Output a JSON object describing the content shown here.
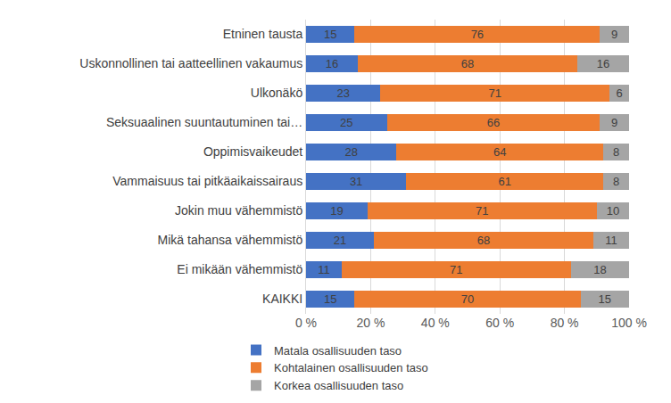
{
  "chart_data": {
    "type": "bar",
    "orientation": "horizontal",
    "stacked": true,
    "data_labels": true,
    "grid": true,
    "legend": "bottom",
    "categories": [
      "Etninen tausta",
      "Uskonnollinen tai aatteellinen vakaumus",
      "Ulkonäkö",
      "Seksuaalinen suuntautuminen tai…",
      "Oppimisvaikeudet",
      "Vammaisuus tai pitkäaikaissairaus",
      "Jokin muu vähemmistö",
      "Mikä tahansa vähemmistö",
      "Ei mikään vähemmistö",
      "KAIKKI"
    ],
    "series": [
      {
        "name": "Matala osallisuuden taso",
        "color": "#4472c4",
        "values": [
          15,
          16,
          23,
          25,
          28,
          31,
          19,
          21,
          11,
          15
        ]
      },
      {
        "name": "Kohtalainen osallisuuden taso",
        "color": "#ed7d31",
        "values": [
          76,
          68,
          71,
          66,
          64,
          61,
          71,
          68,
          71,
          70
        ]
      },
      {
        "name": "Korkea osallisuuden taso",
        "color": "#a5a5a5",
        "values": [
          9,
          16,
          6,
          9,
          8,
          8,
          10,
          11,
          18,
          15
        ]
      }
    ],
    "xlim": [
      0,
      100
    ],
    "xticks": [
      {
        "value": 0,
        "label": "0 %"
      },
      {
        "value": 20,
        "label": "20 %"
      },
      {
        "value": 40,
        "label": "40 %"
      },
      {
        "value": 60,
        "label": "60 %"
      },
      {
        "value": 80,
        "label": "80 %"
      },
      {
        "value": 100,
        "label": "100 %"
      }
    ]
  }
}
